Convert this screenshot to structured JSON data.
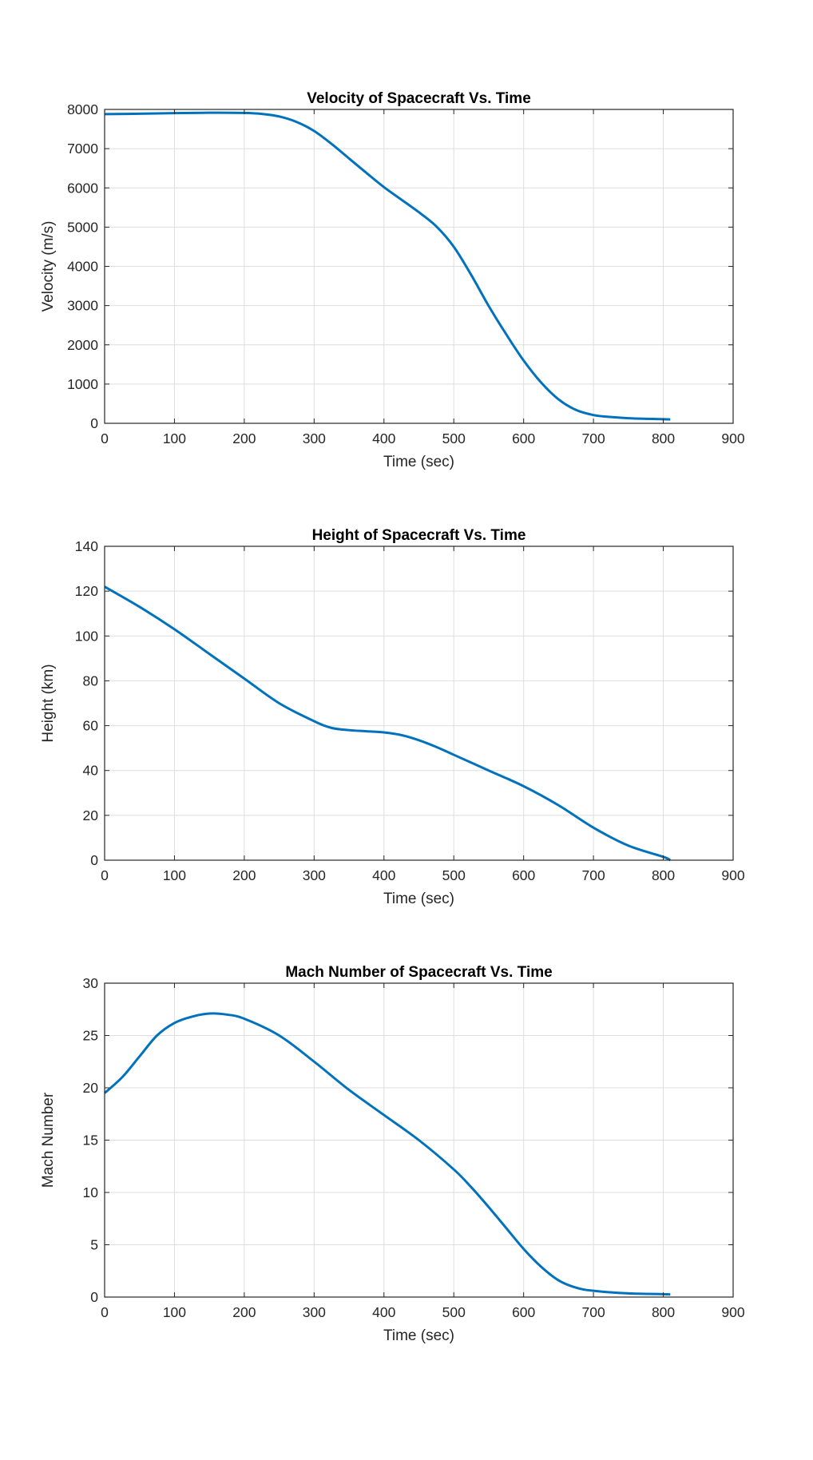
{
  "figure": {
    "colors": {
      "line": "#0072BD",
      "grid": "#dedede",
      "axes": "#262626",
      "background": "#ffffff"
    }
  },
  "chart_data": [
    {
      "type": "line",
      "title": "Velocity of Spacecraft Vs. Time",
      "xlabel": "Time (sec)",
      "ylabel": "Velocity (m/s)",
      "xlim": [
        0,
        900
      ],
      "ylim": [
        0,
        8000
      ],
      "xticks": [
        0,
        100,
        200,
        300,
        400,
        500,
        600,
        700,
        800,
        900
      ],
      "yticks": [
        0,
        1000,
        2000,
        3000,
        4000,
        5000,
        6000,
        7000,
        8000
      ],
      "grid": true,
      "series": [
        {
          "x": [
            0,
            50,
            100,
            150,
            200,
            225,
            250,
            275,
            300,
            325,
            350,
            375,
            400,
            425,
            450,
            475,
            500,
            525,
            550,
            575,
            600,
            625,
            650,
            675,
            700,
            725,
            750,
            775,
            800,
            810
          ],
          "y": [
            7880,
            7890,
            7905,
            7915,
            7910,
            7885,
            7820,
            7680,
            7450,
            7120,
            6750,
            6380,
            6020,
            5700,
            5380,
            5020,
            4500,
            3780,
            2990,
            2270,
            1600,
            1040,
            610,
            340,
            210,
            160,
            130,
            115,
            105,
            100
          ]
        }
      ]
    },
    {
      "type": "line",
      "title": "Height of Spacecraft Vs. Time",
      "xlabel": "Time (sec)",
      "ylabel": "Height (km)",
      "xlim": [
        0,
        900
      ],
      "ylim": [
        0,
        140
      ],
      "xticks": [
        0,
        100,
        200,
        300,
        400,
        500,
        600,
        700,
        800,
        900
      ],
      "yticks": [
        0,
        20,
        40,
        60,
        80,
        100,
        120,
        140
      ],
      "grid": true,
      "series": [
        {
          "x": [
            0,
            50,
            100,
            150,
            200,
            250,
            300,
            325,
            350,
            375,
            400,
            425,
            450,
            475,
            500,
            550,
            600,
            650,
            700,
            750,
            800,
            810
          ],
          "y": [
            122,
            113,
            103,
            92,
            81,
            70,
            62,
            59,
            58,
            57.5,
            57,
            55.8,
            53.5,
            50.5,
            47,
            40,
            33,
            24.5,
            14.5,
            6.5,
            1.5,
            0
          ]
        }
      ]
    },
    {
      "type": "line",
      "title": "Mach Number of Spacecraft Vs. Time",
      "xlabel": "Time (sec)",
      "ylabel": "Mach Number",
      "xlim": [
        0,
        900
      ],
      "ylim": [
        0,
        30
      ],
      "xticks": [
        0,
        100,
        200,
        300,
        400,
        500,
        600,
        700,
        800,
        900
      ],
      "yticks": [
        0,
        5,
        10,
        15,
        20,
        25,
        30
      ],
      "grid": true,
      "series": [
        {
          "x": [
            0,
            25,
            50,
            75,
            100,
            125,
            150,
            175,
            200,
            250,
            300,
            350,
            400,
            450,
            500,
            525,
            550,
            575,
            600,
            625,
            650,
            675,
            700,
            750,
            800,
            810
          ],
          "y": [
            19.5,
            21,
            23,
            25,
            26.2,
            26.8,
            27.1,
            27,
            26.6,
            25,
            22.5,
            19.8,
            17.4,
            15,
            12.2,
            10.5,
            8.6,
            6.6,
            4.6,
            2.9,
            1.6,
            0.9,
            0.6,
            0.35,
            0.28,
            0.25
          ]
        }
      ]
    }
  ]
}
